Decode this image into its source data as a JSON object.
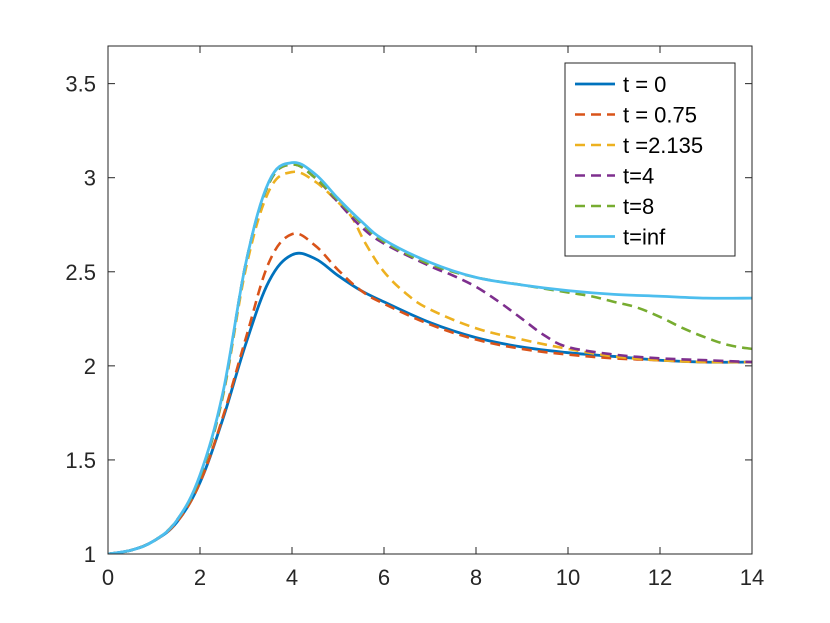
{
  "chart_data": {
    "type": "line",
    "title": "",
    "xlabel": "",
    "ylabel": "",
    "xlim": [
      0,
      14
    ],
    "ylim": [
      1,
      3.7
    ],
    "x_ticks": [
      0,
      2,
      4,
      6,
      8,
      10,
      12,
      14
    ],
    "y_ticks": [
      1,
      1.5,
      2,
      2.5,
      3,
      3.5
    ],
    "x_tick_labels": [
      "0",
      "2",
      "4",
      "6",
      "8",
      "10",
      "12",
      "14"
    ],
    "y_tick_labels": [
      "1",
      "1.5",
      "2",
      "2.5",
      "3",
      "3.5"
    ],
    "grid": false,
    "legend_position": "top-right",
    "series": [
      {
        "name": "t = 0",
        "color": "#0072BD",
        "style": "solid",
        "points": [
          [
            0,
            1
          ],
          [
            0.5,
            1.02
          ],
          [
            1,
            1.07
          ],
          [
            1.5,
            1.17
          ],
          [
            2,
            1.38
          ],
          [
            2.5,
            1.72
          ],
          [
            3,
            2.12
          ],
          [
            3.5,
            2.45
          ],
          [
            4,
            2.59
          ],
          [
            4.5,
            2.57
          ],
          [
            5,
            2.48
          ],
          [
            5.5,
            2.4
          ],
          [
            6,
            2.34
          ],
          [
            7,
            2.23
          ],
          [
            8,
            2.15
          ],
          [
            9,
            2.1
          ],
          [
            10,
            2.07
          ],
          [
            11,
            2.05
          ],
          [
            12,
            2.03
          ],
          [
            13,
            2.02
          ],
          [
            14,
            2.02
          ]
        ]
      },
      {
        "name": "t = 0.75",
        "color": "#D95319",
        "style": "dashed",
        "points": [
          [
            0,
            1
          ],
          [
            0.5,
            1.02
          ],
          [
            1,
            1.07
          ],
          [
            1.5,
            1.17
          ],
          [
            2,
            1.38
          ],
          [
            2.5,
            1.73
          ],
          [
            3,
            2.15
          ],
          [
            3.5,
            2.55
          ],
          [
            4,
            2.7
          ],
          [
            4.5,
            2.64
          ],
          [
            5,
            2.51
          ],
          [
            5.5,
            2.4
          ],
          [
            6,
            2.33
          ],
          [
            7,
            2.22
          ],
          [
            8,
            2.14
          ],
          [
            9,
            2.09
          ],
          [
            10,
            2.06
          ],
          [
            11,
            2.04
          ],
          [
            12,
            2.03
          ],
          [
            13,
            2.02
          ],
          [
            14,
            2.02
          ]
        ]
      },
      {
        "name": "t =2.135",
        "color": "#EDB120",
        "style": "dashed",
        "points": [
          [
            0,
            1
          ],
          [
            0.5,
            1.02
          ],
          [
            1,
            1.07
          ],
          [
            1.5,
            1.18
          ],
          [
            2,
            1.41
          ],
          [
            2.5,
            1.84
          ],
          [
            3,
            2.52
          ],
          [
            3.5,
            2.93
          ],
          [
            4,
            3.03
          ],
          [
            4.5,
            2.98
          ],
          [
            5,
            2.87
          ],
          [
            5.3,
            2.79
          ],
          [
            5.6,
            2.65
          ],
          [
            6,
            2.5
          ],
          [
            6.5,
            2.38
          ],
          [
            7,
            2.3
          ],
          [
            8,
            2.2
          ],
          [
            9,
            2.14
          ],
          [
            10,
            2.09
          ],
          [
            11,
            2.05
          ],
          [
            12,
            2.03
          ],
          [
            13,
            2.02
          ],
          [
            14,
            2.02
          ]
        ]
      },
      {
        "name": "t=4",
        "color": "#7E2F8E",
        "style": "dashed",
        "points": [
          [
            0,
            1
          ],
          [
            0.5,
            1.02
          ],
          [
            1,
            1.07
          ],
          [
            1.5,
            1.18
          ],
          [
            2,
            1.41
          ],
          [
            2.5,
            1.85
          ],
          [
            3,
            2.55
          ],
          [
            3.5,
            2.97
          ],
          [
            4,
            3.07
          ],
          [
            4.5,
            3.0
          ],
          [
            5,
            2.87
          ],
          [
            5.5,
            2.74
          ],
          [
            6,
            2.65
          ],
          [
            7,
            2.53
          ],
          [
            7.5,
            2.48
          ],
          [
            8,
            2.42
          ],
          [
            8.5,
            2.34
          ],
          [
            9,
            2.25
          ],
          [
            9.5,
            2.16
          ],
          [
            10,
            2.1
          ],
          [
            11,
            2.06
          ],
          [
            12,
            2.04
          ],
          [
            13,
            2.03
          ],
          [
            14,
            2.02
          ]
        ]
      },
      {
        "name": "t=8",
        "color": "#77AC30",
        "style": "dashed",
        "points": [
          [
            0,
            1
          ],
          [
            0.5,
            1.02
          ],
          [
            1,
            1.07
          ],
          [
            1.5,
            1.18
          ],
          [
            2,
            1.41
          ],
          [
            2.5,
            1.85
          ],
          [
            3,
            2.55
          ],
          [
            3.5,
            2.97
          ],
          [
            4,
            3.07
          ],
          [
            4.5,
            3.0
          ],
          [
            5,
            2.88
          ],
          [
            5.5,
            2.76
          ],
          [
            6,
            2.66
          ],
          [
            7,
            2.54
          ],
          [
            8,
            2.47
          ],
          [
            9,
            2.43
          ],
          [
            10,
            2.39
          ],
          [
            10.5,
            2.37
          ],
          [
            11,
            2.34
          ],
          [
            11.5,
            2.31
          ],
          [
            12,
            2.26
          ],
          [
            12.5,
            2.2
          ],
          [
            13,
            2.15
          ],
          [
            13.5,
            2.11
          ],
          [
            14,
            2.09
          ]
        ]
      },
      {
        "name": "t=inf",
        "color": "#4DBEEE",
        "style": "solid",
        "points": [
          [
            0,
            1
          ],
          [
            0.5,
            1.02
          ],
          [
            1,
            1.07
          ],
          [
            1.5,
            1.18
          ],
          [
            2,
            1.42
          ],
          [
            2.5,
            1.86
          ],
          [
            3,
            2.55
          ],
          [
            3.5,
            2.98
          ],
          [
            4,
            3.08
          ],
          [
            4.5,
            3.02
          ],
          [
            5,
            2.89
          ],
          [
            5.5,
            2.77
          ],
          [
            6,
            2.67
          ],
          [
            7,
            2.55
          ],
          [
            8,
            2.47
          ],
          [
            9,
            2.43
          ],
          [
            10,
            2.4
          ],
          [
            11,
            2.38
          ],
          [
            12,
            2.37
          ],
          [
            13,
            2.36
          ],
          [
            14,
            2.36
          ]
        ]
      }
    ]
  }
}
